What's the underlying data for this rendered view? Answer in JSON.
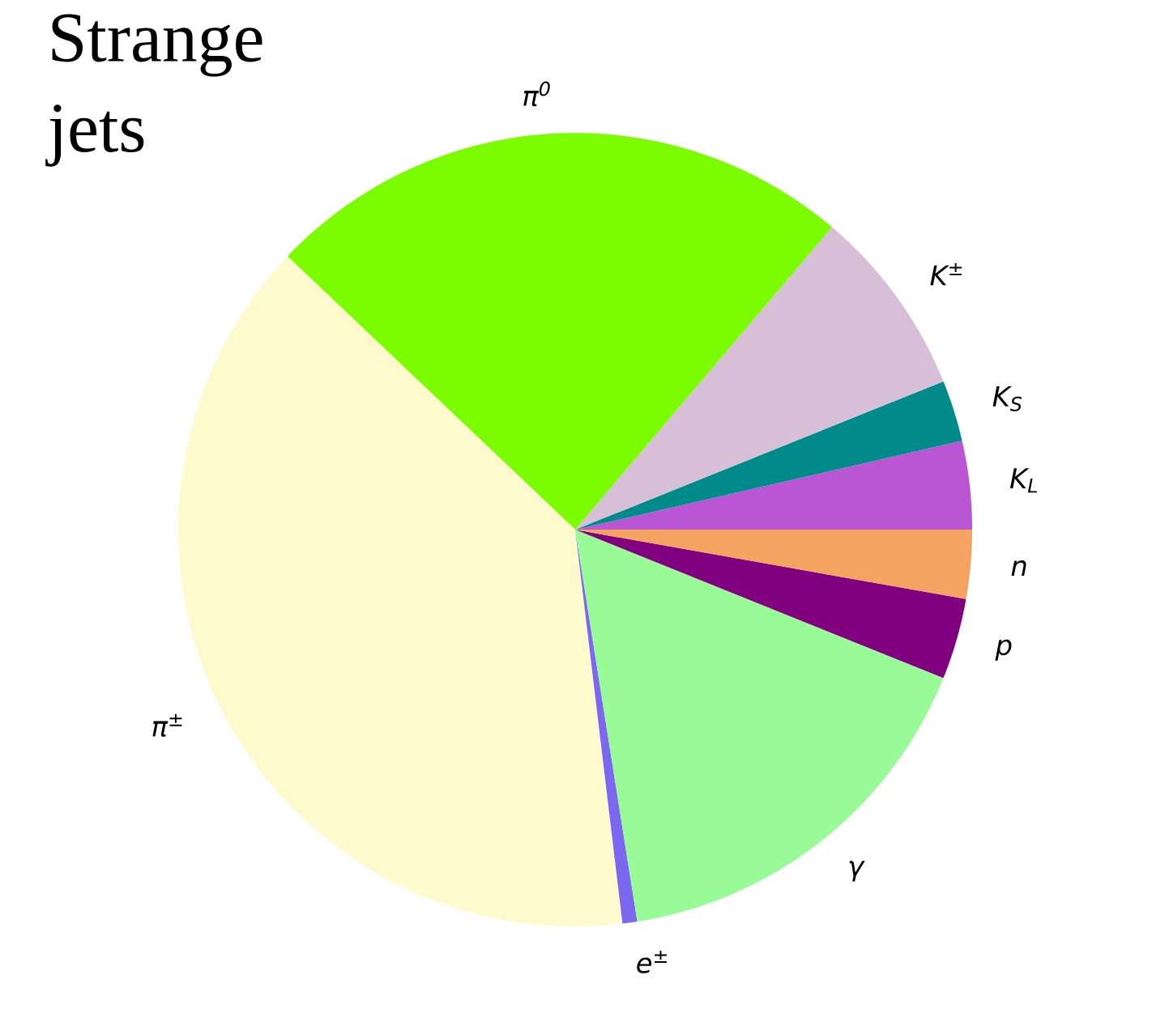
{
  "chart_data": {
    "type": "pie",
    "title": "Strange jets",
    "categories": [
      "K$_{L}$",
      "K$_{S}$",
      "K$^{±}$",
      "π$^{0}$",
      "π$^{±}$",
      "e$^{±}$",
      "γ",
      "p",
      "n"
    ],
    "values": [
      3.6,
      2.5,
      7.7,
      24.1,
      39.0,
      0.6,
      16.4,
      3.3,
      2.8
    ],
    "colors": [
      "#ba55d3",
      "#008b8b",
      "#d8bfd8",
      "#7cfc00",
      "#fffacd",
      "#7b68ee",
      "#98fb98",
      "#800080",
      "#f4a460"
    ]
  }
}
